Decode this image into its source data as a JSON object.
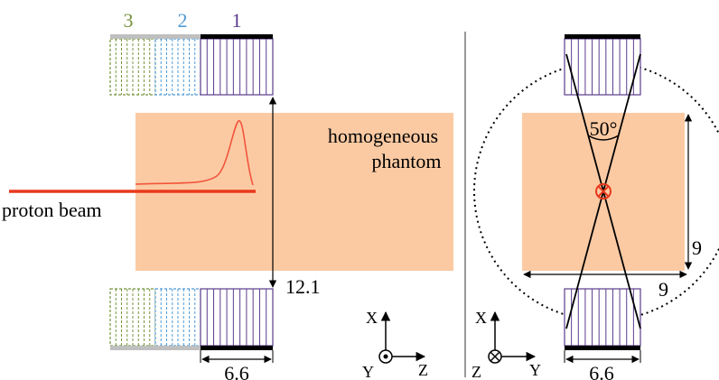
{
  "left_panel": {
    "module_labels": [
      "3",
      "2",
      "1"
    ],
    "phantom_label": [
      "homogeneous",
      "phantom"
    ],
    "beam_label": "proton beam",
    "distance_label": "12.1",
    "width_label": "6.6",
    "axes": {
      "x": "X",
      "y": "Y",
      "z": "Z"
    }
  },
  "right_panel": {
    "angle_label": "50°",
    "height_label": "9",
    "length_label": "9",
    "width_label": "6.6",
    "axes": {
      "x": "X",
      "y": "Y",
      "z": "Z"
    }
  }
}
